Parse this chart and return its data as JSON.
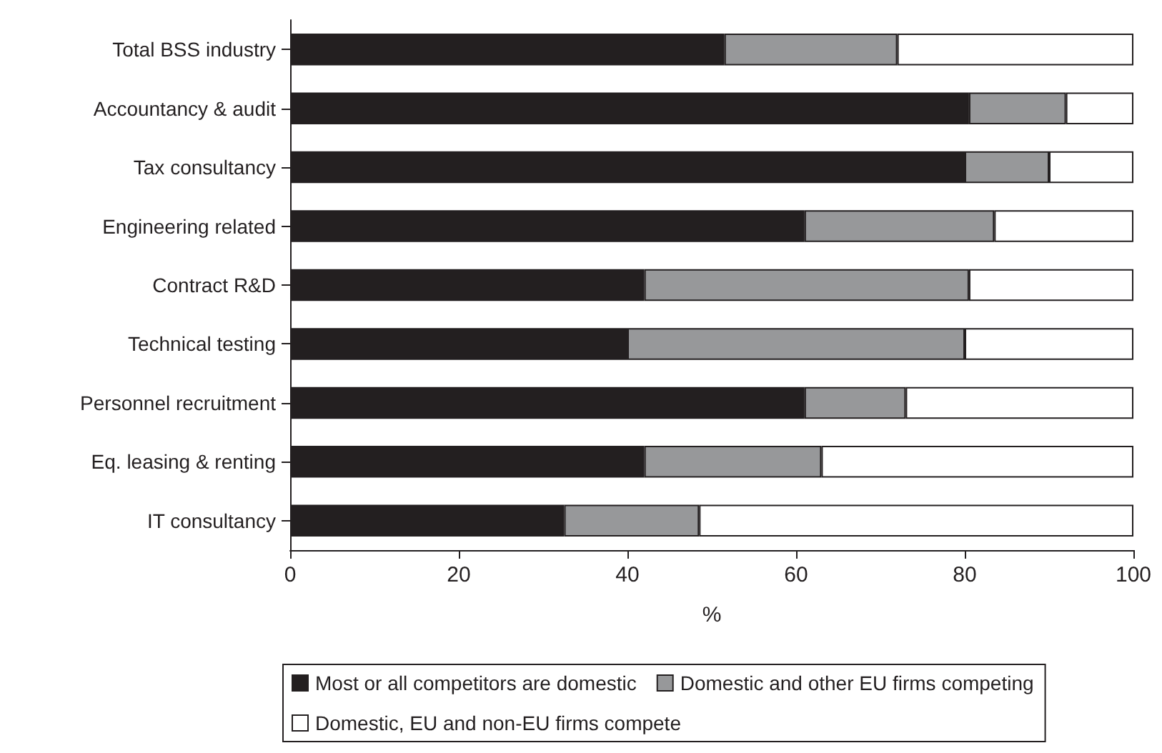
{
  "chart_data": {
    "type": "bar",
    "orientation": "horizontal",
    "stacked": true,
    "xlabel": "%",
    "categories": [
      "Total BSS industry",
      "Accountancy & audit",
      "Tax consultancy",
      "Engineering related",
      "Contract R&D",
      "Technical testing",
      "Personnel recruitment",
      "Eq. leasing & renting",
      "IT consultancy"
    ],
    "series": [
      {
        "name": "Most or all competitors are domestic",
        "color": "#231f20",
        "values": [
          51.5,
          80.5,
          80,
          61,
          42,
          40,
          61,
          42,
          32.5
        ]
      },
      {
        "name": "Domestic and other EU firms competing",
        "color": "#97989a",
        "values": [
          20.5,
          11.5,
          10,
          22.5,
          38.5,
          40,
          12,
          21,
          16
        ]
      },
      {
        "name": "Domestic, EU and non-EU firms compete",
        "color": "#ffffff",
        "values": [
          28,
          8,
          10,
          16.5,
          19.5,
          20,
          27,
          37,
          51.5
        ]
      }
    ],
    "xlim": [
      0,
      100
    ],
    "xticks": [
      0,
      20,
      40,
      60,
      80,
      100
    ],
    "grid": false,
    "legend": "bottom"
  }
}
